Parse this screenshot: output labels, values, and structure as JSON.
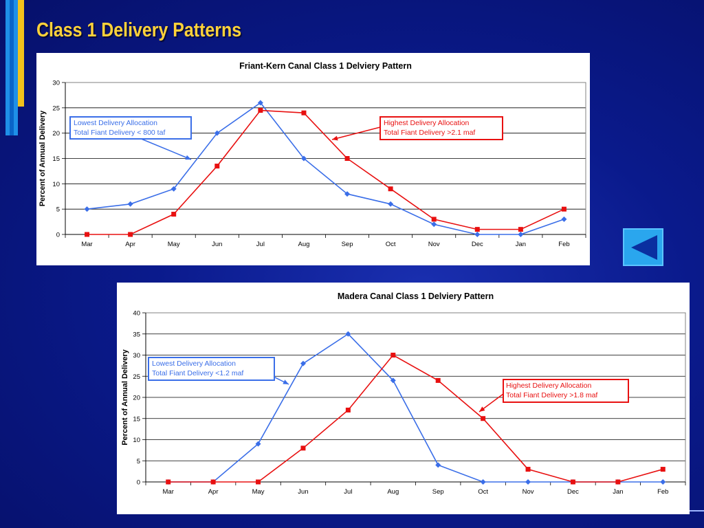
{
  "slide": {
    "title": "Class 1 Delivery Patterns",
    "back_button_icon": "back-arrow-icon",
    "colors": {
      "title": "#ffd23a",
      "background": "#0a1a8c",
      "accent_blue": "#1e8fe8",
      "accent_yellow": "#f2c21b"
    }
  },
  "chart_data": [
    {
      "type": "line",
      "title": "Friant-Kern Canal Class 1 Delviery Pattern",
      "xlabel": "",
      "ylabel": "Percent of Annual Delivery",
      "categories": [
        "Mar",
        "Apr",
        "May",
        "Jun",
        "Jul",
        "Aug",
        "Sep",
        "Oct",
        "Nov",
        "Dec",
        "Jan",
        "Feb"
      ],
      "ylim": [
        0,
        30
      ],
      "yticks": [
        0,
        5,
        10,
        15,
        20,
        25,
        30
      ],
      "grid": true,
      "series": [
        {
          "name": "Lowest Delivery Allocation",
          "color": "#3a6ee8",
          "marker": "diamond",
          "values": [
            5,
            6,
            9,
            20,
            26,
            15,
            8,
            6,
            2,
            0,
            0,
            3
          ]
        },
        {
          "name": "Highest Delivery Allocation",
          "color": "#e81010",
          "marker": "square",
          "values": [
            0,
            0,
            4,
            13.5,
            24.5,
            24,
            15,
            9,
            3,
            1,
            1,
            5
          ]
        }
      ],
      "annotations": [
        {
          "series": 0,
          "lines": [
            "Lowest Delivery Allocation",
            "Total Fiant Delivery < 800 taf"
          ]
        },
        {
          "series": 1,
          "lines": [
            "Highest Delivery Allocation",
            "Total Fiant Delivery >2.1 maf"
          ]
        }
      ]
    },
    {
      "type": "line",
      "title": "Madera Canal Class 1 Delviery Pattern",
      "xlabel": "",
      "ylabel": "Percent of Annual Delivery",
      "categories": [
        "Mar",
        "Apr",
        "May",
        "Jun",
        "Jul",
        "Aug",
        "Sep",
        "Oct",
        "Nov",
        "Dec",
        "Jan",
        "Feb"
      ],
      "ylim": [
        0,
        40
      ],
      "yticks": [
        0,
        5,
        10,
        15,
        20,
        25,
        30,
        35,
        40
      ],
      "grid": true,
      "series": [
        {
          "name": "Lowest Delivery Allocation",
          "color": "#3a6ee8",
          "marker": "diamond",
          "values": [
            0,
            0,
            9,
            28,
            35,
            24,
            4,
            0,
            0,
            0,
            0,
            0
          ]
        },
        {
          "name": "Highest Delivery Allocation",
          "color": "#e81010",
          "marker": "square",
          "values": [
            0,
            0,
            0,
            8,
            17,
            30,
            24,
            15,
            3,
            0,
            0,
            3
          ]
        }
      ],
      "annotations": [
        {
          "series": 0,
          "lines": [
            "Lowest Delivery Allocation",
            "Total Fiant Delivery <1.2 maf"
          ]
        },
        {
          "series": 1,
          "lines": [
            "Highest Delivery Allocation",
            "Total Fiant Delivery >1.8 maf"
          ]
        }
      ]
    }
  ]
}
